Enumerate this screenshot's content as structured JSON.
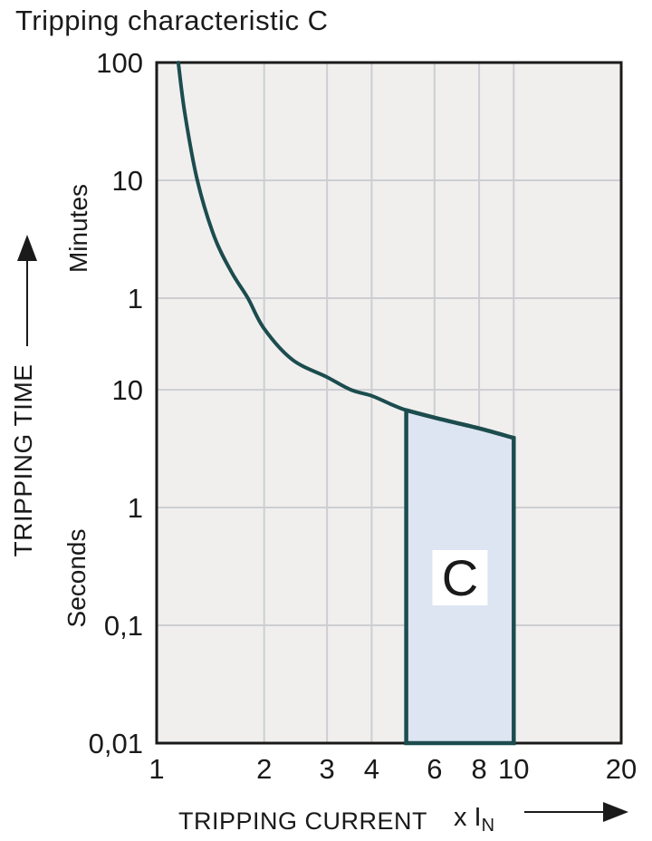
{
  "title": "Tripping characteristic C",
  "y_axis": {
    "label": "TRIPPING TIME",
    "unit_upper": "Minutes",
    "unit_lower": "Seconds"
  },
  "x_axis": {
    "label": "TRIPPING CURRENT",
    "unit_prefix": "x I",
    "unit_sub": "N"
  },
  "chart_data": {
    "type": "line",
    "title": "Tripping characteristic C",
    "xlabel": "TRIPPING CURRENT (x IN)",
    "ylabel": "TRIPPING TIME",
    "x_scale": "log",
    "y_scale": "log",
    "x_range": [
      1,
      20
    ],
    "y_range_seconds": [
      0.01,
      6000
    ],
    "legend": "none",
    "grid": "on",
    "x_ticks": [
      {
        "label": "1",
        "value": 1
      },
      {
        "label": "2",
        "value": 2
      },
      {
        "label": "3",
        "value": 3
      },
      {
        "label": "4",
        "value": 4
      },
      {
        "label": "6",
        "value": 6
      },
      {
        "label": "8",
        "value": 8
      },
      {
        "label": "10",
        "value": 10
      },
      {
        "label": "20",
        "value": 20
      }
    ],
    "y_ticks": [
      {
        "label": "100",
        "seconds": 6000,
        "unit": "minutes"
      },
      {
        "label": "10",
        "seconds": 600,
        "unit": "minutes"
      },
      {
        "label": "1",
        "seconds": 60,
        "unit": "minutes"
      },
      {
        "label": "10",
        "seconds": 10,
        "unit": "seconds"
      },
      {
        "label": "1",
        "seconds": 1,
        "unit": "seconds"
      },
      {
        "label": "0,1",
        "seconds": 0.1,
        "unit": "seconds"
      },
      {
        "label": "0,01",
        "seconds": 0.01,
        "unit": "seconds"
      }
    ],
    "x_gridlines": [
      2,
      3,
      4,
      6,
      8,
      10
    ],
    "y_gridlines_seconds": [
      600,
      60,
      10,
      1,
      0.1
    ],
    "series": [
      {
        "name": "thermal-tripping-curve",
        "points_x_in_y_seconds": [
          [
            1.15,
            6000
          ],
          [
            1.2,
            2200
          ],
          [
            1.3,
            600
          ],
          [
            1.45,
            200
          ],
          [
            1.62,
            100
          ],
          [
            1.8,
            60
          ],
          [
            2.0,
            33
          ],
          [
            2.4,
            18
          ],
          [
            3.0,
            12.8
          ],
          [
            3.5,
            10
          ],
          [
            4.0,
            8.9
          ],
          [
            4.5,
            7.6
          ],
          [
            5.0,
            6.7
          ]
        ]
      }
    ],
    "band": {
      "label": "C",
      "x_from": 5,
      "x_to": 10,
      "top_points_x_in_y_seconds": [
        [
          5,
          6.7
        ],
        [
          6,
          5.8
        ],
        [
          8,
          4.7
        ],
        [
          10,
          3.9
        ]
      ],
      "bottom_seconds": 0.01
    },
    "colors": {
      "curve": "#1c4c4e",
      "band_fill": "#dde4f2",
      "band_stroke": "#1c4c4e",
      "plot_bg": "#f0efee",
      "grid": "#cdced2",
      "frame": "#1a1a1a",
      "text": "#1a1a1a",
      "band_label_bg": "#ffffff"
    }
  }
}
